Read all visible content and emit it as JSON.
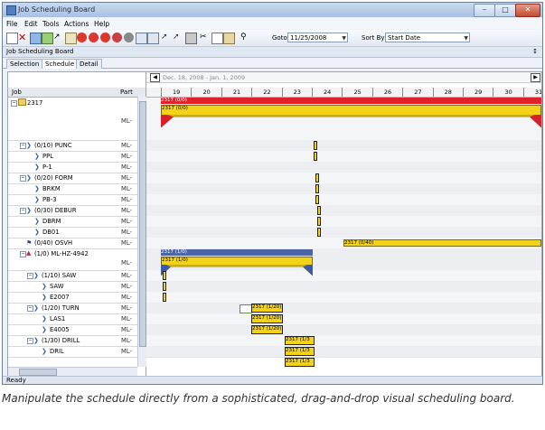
{
  "window": {
    "title": "Job Scheduling Board"
  },
  "menu": [
    "File",
    "Edit",
    "Tools",
    "Actions",
    "Help"
  ],
  "toolbar": {
    "goto_label": "Goto",
    "goto_value": "11/25/2008",
    "sortby_label": "Sort By",
    "sortby_value": "Start Date"
  },
  "panel": {
    "title": "Job Scheduling Board",
    "pin": "↕"
  },
  "tabs": [
    "Selection",
    "Schedule",
    "Detail"
  ],
  "grid": {
    "date_range": "Dec. 18, 2008 - Jan. 1, 2009",
    "col_job": "Job",
    "col_part": "Part",
    "days": [
      "19",
      "20",
      "21",
      "22",
      "23",
      "24",
      "25",
      "26",
      "27",
      "28",
      "29",
      "30",
      "31"
    ]
  },
  "rows": [
    {
      "job": "2317",
      "part": "ML-"
    },
    {
      "job": "(0/10) PUNC",
      "part": "ML-"
    },
    {
      "job": "PPL",
      "part": "ML-"
    },
    {
      "job": "P-1",
      "part": "ML-"
    },
    {
      "job": "(0/20) FORM",
      "part": "ML-"
    },
    {
      "job": "BRKM",
      "part": "ML-"
    },
    {
      "job": "PB-3",
      "part": "ML-"
    },
    {
      "job": "(0/30) DEBUR",
      "part": "ML-"
    },
    {
      "job": "DBRM",
      "part": "ML-"
    },
    {
      "job": "DB01",
      "part": "ML-"
    },
    {
      "job": "(0/40) OSVH",
      "part": "ML-"
    },
    {
      "job": "(1/0) ML-HZ-4942",
      "part": "ML-"
    },
    {
      "job": "(1/10) SAW",
      "part": "ML-"
    },
    {
      "job": "SAW",
      "part": "ML-"
    },
    {
      "job": "E2007",
      "part": "ML-"
    },
    {
      "job": "(1/20) TURN",
      "part": "ML-"
    },
    {
      "job": "LAS1",
      "part": "ML-"
    },
    {
      "job": "E4005",
      "part": "ML-"
    },
    {
      "job": "(1/30) DRILL",
      "part": "ML-"
    },
    {
      "job": "DRIL",
      "part": "ML-"
    }
  ],
  "bars": {
    "b2317_red": "2317 (0/0)",
    "b2317_yellow": "2317 (0/0)",
    "osvh": "2317 (0/40)",
    "hz_blue": "2317 (1/0)",
    "hz_yellow": "2317 (1/0)",
    "turn": "2317 (1/20)",
    "las1": "2317 (1/20)",
    "e4005": "2317 (1/20)",
    "drill": "2317 (1/3",
    "dril": "2317 (1/3",
    "dril2": "2317 (1/3"
  },
  "status": "Ready",
  "caption": "Manipulate the schedule directly from a sophisticated, drag-and-drop visual scheduling board."
}
